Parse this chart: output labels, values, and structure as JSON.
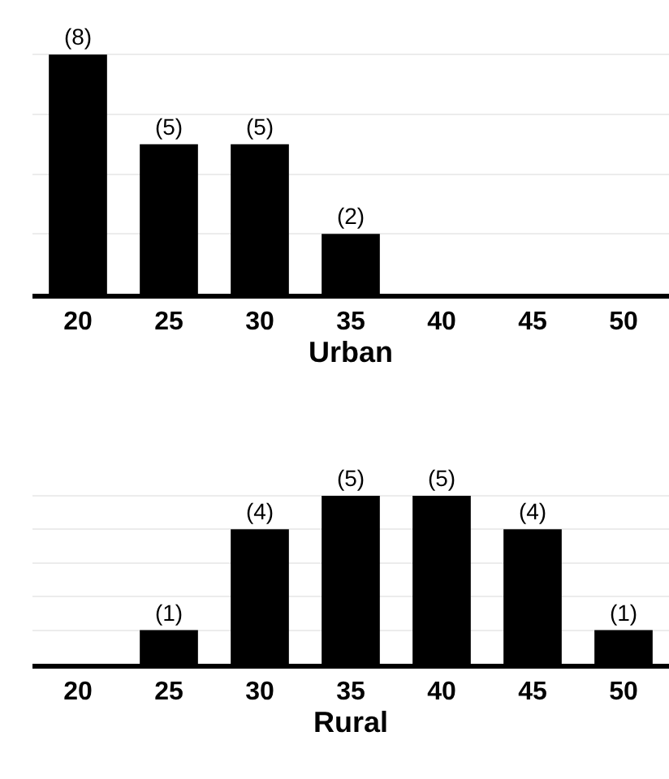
{
  "chart_data": [
    {
      "type": "bar",
      "xlabel": "Urban",
      "categories": [
        "20",
        "25",
        "30",
        "35",
        "40",
        "45",
        "50"
      ],
      "values": [
        8,
        5,
        5,
        2,
        0,
        0,
        0
      ],
      "value_labels": [
        "(8)",
        "(5)",
        "(5)",
        "(2)",
        null,
        null,
        null
      ],
      "color": "#000000",
      "yticks": [
        {
          "value": 2,
          "label": null
        },
        {
          "value": 4,
          "label": null
        },
        {
          "value": 6,
          "label": null
        },
        {
          "value": 8,
          "label": null
        }
      ],
      "grid": "y",
      "tick_labels": "x"
    },
    {
      "type": "bar",
      "xlabel": "Rural",
      "categories": [
        "20",
        "25",
        "30",
        "35",
        "40",
        "45",
        "50"
      ],
      "values": [
        0,
        1,
        4,
        5,
        5,
        4,
        1
      ],
      "value_labels": [
        null,
        "(1)",
        "(4)",
        "(5)",
        "(5)",
        "(4)",
        "(1)"
      ],
      "color": "#000000",
      "yticks": [
        {
          "value": 1,
          "label": null
        },
        {
          "value": 2,
          "label": null
        },
        {
          "value": 3,
          "label": null
        },
        {
          "value": 4,
          "label": null
        },
        {
          "value": 5,
          "label": null
        }
      ],
      "grid": "y",
      "tick_labels": "x"
    }
  ]
}
